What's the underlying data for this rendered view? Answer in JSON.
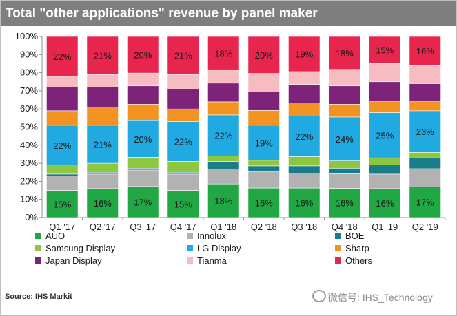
{
  "title": "Total \"other applications\" revenue by panel maker",
  "source": "Source: IHS Markit",
  "watermark": "微信号: IHS_Technology",
  "chart_data": {
    "type": "bar",
    "stacked": true,
    "percent": true,
    "categories": [
      "Q1 '17",
      "Q2 '17",
      "Q3 '17",
      "Q4 '17",
      "Q1 '18",
      "Q2 '18",
      "Q3 '18",
      "Q4 '18",
      "Q1 '19",
      "Q2 '19"
    ],
    "y_ticks": [
      "0%",
      "10%",
      "20%",
      "30%",
      "40%",
      "50%",
      "60%",
      "70%",
      "80%",
      "90%",
      "100%"
    ],
    "ylim": [
      0,
      100
    ],
    "series": [
      {
        "name": "AUO",
        "color": "#22a745",
        "values": [
          15,
          16,
          17,
          15,
          18,
          16,
          16,
          16,
          16,
          17
        ],
        "labels": [
          "15%",
          "16%",
          "17%",
          "15%",
          "18%",
          "16%",
          "16%",
          "16%",
          "16%",
          "17%"
        ]
      },
      {
        "name": "Innolux",
        "color": "#b2b2b2",
        "values": [
          8,
          8,
          9,
          9,
          8,
          9,
          8,
          8,
          8,
          10
        ],
        "labels": []
      },
      {
        "name": "BOE",
        "color": "#1a7c88",
        "values": [
          1,
          1,
          1,
          1,
          4,
          3,
          4,
          3,
          5,
          6
        ],
        "labels": []
      },
      {
        "name": "Samsung Display",
        "color": "#8dc63f",
        "values": [
          5,
          5,
          6,
          6,
          3,
          3,
          5,
          4,
          4,
          3
        ],
        "labels": []
      },
      {
        "name": "LG Display",
        "color": "#21a9e1",
        "values": [
          22,
          21,
          20,
          22,
          22,
          19,
          22,
          24,
          25,
          23
        ],
        "labels": [
          "22%",
          "21%",
          "20%",
          "22%",
          "22%",
          "19%",
          "22%",
          "24%",
          "25%",
          "23%"
        ]
      },
      {
        "name": "Sharp",
        "color": "#f39321",
        "values": [
          8,
          10,
          9,
          7,
          7,
          8,
          7,
          7,
          6,
          5
        ],
        "labels": []
      },
      {
        "name": "Japan Display",
        "color": "#7d2379",
        "values": [
          13,
          11,
          10,
          11,
          10,
          10,
          10,
          10,
          11,
          10
        ],
        "labels": []
      },
      {
        "name": "Tianma",
        "color": "#f6bcc2",
        "values": [
          6,
          7,
          7,
          8,
          7,
          10,
          7,
          9,
          10,
          10
        ],
        "labels": []
      },
      {
        "name": "Others",
        "color": "#e8264d",
        "values": [
          22,
          21,
          20,
          21,
          18,
          20,
          19,
          18,
          15,
          16
        ],
        "labels": [
          "22%",
          "21%",
          "20%",
          "21%",
          "18%",
          "20%",
          "19%",
          "18%",
          "15%",
          "16%"
        ]
      }
    ],
    "legend": [
      {
        "name": "AUO",
        "color": "#22a745"
      },
      {
        "name": "Innolux",
        "color": "#b2b2b2"
      },
      {
        "name": "BOE",
        "color": "#1a7c88"
      },
      {
        "name": "Samsung Display",
        "color": "#8dc63f"
      },
      {
        "name": "LG Display",
        "color": "#21a9e1"
      },
      {
        "name": "Sharp",
        "color": "#f39321"
      },
      {
        "name": "Japan Display",
        "color": "#7d2379"
      },
      {
        "name": "Tianma",
        "color": "#f6bcc2"
      },
      {
        "name": "Others",
        "color": "#e8264d"
      }
    ]
  }
}
